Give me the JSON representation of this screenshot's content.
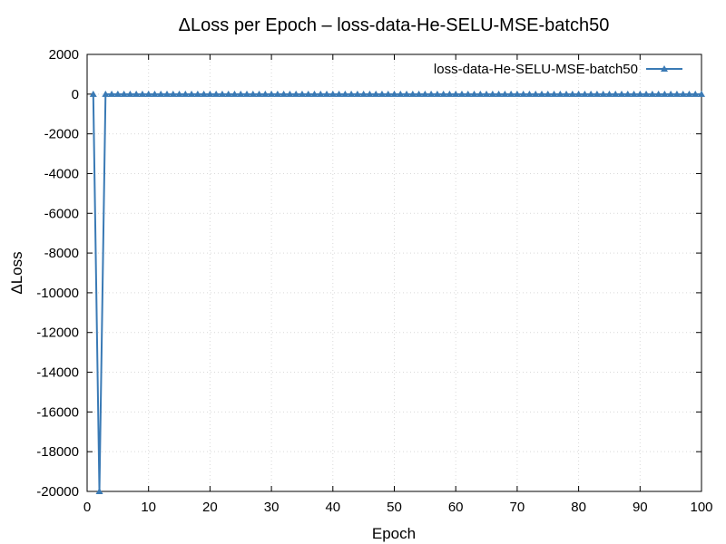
{
  "chart_data": {
    "type": "line",
    "title": "ΔLoss per Epoch – loss-data-He-SELU-MSE-batch50",
    "xlabel": "Epoch",
    "ylabel": "ΔLoss",
    "xlim": [
      0,
      100
    ],
    "ylim": [
      -20000,
      2000
    ],
    "x_ticks": [
      0,
      10,
      20,
      30,
      40,
      50,
      60,
      70,
      80,
      90,
      100
    ],
    "y_ticks": [
      2000,
      0,
      -2000,
      -4000,
      -6000,
      -8000,
      -10000,
      -12000,
      -14000,
      -16000,
      -18000,
      -20000
    ],
    "grid": true,
    "legend_position": "top-right",
    "series": [
      {
        "name": "loss-data-He-SELU-MSE-batch50",
        "color": "#3a7ab5",
        "marker": "triangle",
        "x": [
          1,
          2,
          3,
          4,
          5,
          6,
          7,
          8,
          9,
          10,
          11,
          12,
          13,
          14,
          15,
          16,
          17,
          18,
          19,
          20,
          21,
          22,
          23,
          24,
          25,
          26,
          27,
          28,
          29,
          30,
          31,
          32,
          33,
          34,
          35,
          36,
          37,
          38,
          39,
          40,
          41,
          42,
          43,
          44,
          45,
          46,
          47,
          48,
          49,
          50,
          51,
          52,
          53,
          54,
          55,
          56,
          57,
          58,
          59,
          60,
          61,
          62,
          63,
          64,
          65,
          66,
          67,
          68,
          69,
          70,
          71,
          72,
          73,
          74,
          75,
          76,
          77,
          78,
          79,
          80,
          81,
          82,
          83,
          84,
          85,
          86,
          87,
          88,
          89,
          90,
          91,
          92,
          93,
          94,
          95,
          96,
          97,
          98,
          99,
          100
        ],
        "y": [
          0,
          -20000,
          0,
          0,
          0,
          0,
          0,
          0,
          0,
          0,
          0,
          0,
          0,
          0,
          0,
          0,
          0,
          0,
          0,
          0,
          0,
          0,
          0,
          0,
          0,
          0,
          0,
          0,
          0,
          0,
          0,
          0,
          0,
          0,
          0,
          0,
          0,
          0,
          0,
          0,
          0,
          0,
          0,
          0,
          0,
          0,
          0,
          0,
          0,
          0,
          0,
          0,
          0,
          0,
          0,
          0,
          0,
          0,
          0,
          0,
          0,
          0,
          0,
          0,
          0,
          0,
          0,
          0,
          0,
          0,
          0,
          0,
          0,
          0,
          0,
          0,
          0,
          0,
          0,
          0,
          0,
          0,
          0,
          0,
          0,
          0,
          0,
          0,
          0,
          0,
          0,
          0,
          0,
          0,
          0,
          0,
          0,
          0,
          0,
          0
        ]
      }
    ]
  }
}
